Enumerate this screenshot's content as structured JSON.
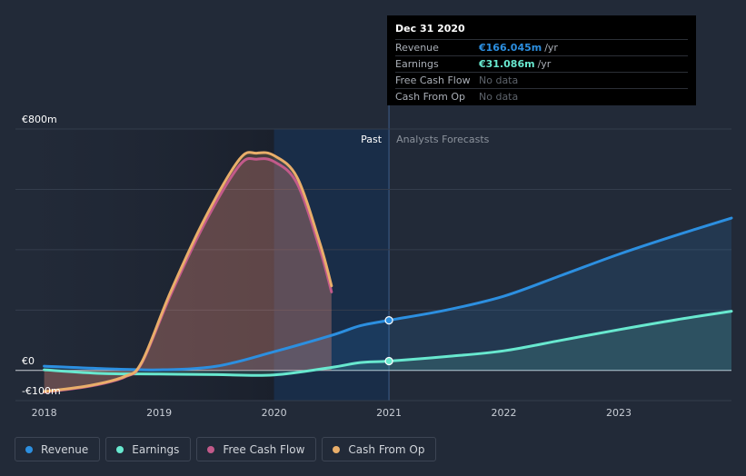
{
  "chart_data": {
    "type": "line",
    "title": "",
    "xlabel": "",
    "ylabel": "",
    "currency": "€",
    "ylim": [
      -100,
      800
    ],
    "y_tick_labels": [
      {
        "value": 800,
        "label": "€800m"
      },
      {
        "value": 0,
        "label": "€0"
      },
      {
        "value": -100,
        "label": "-€100m"
      }
    ],
    "x_tick_labels": [
      {
        "value": 2018,
        "label": "2018"
      },
      {
        "value": 2019,
        "label": "2019"
      },
      {
        "value": 2020,
        "label": "2020"
      },
      {
        "value": 2021,
        "label": "2021"
      },
      {
        "value": 2022,
        "label": "2022"
      },
      {
        "value": 2023,
        "label": "2023"
      }
    ],
    "xlim": [
      2017.75,
      2023.98
    ],
    "divider_x": 2021.0,
    "past_label": "Past",
    "forecast_label": "Analysts Forecasts",
    "series": [
      {
        "name": "Revenue",
        "color": "#2c8fe0",
        "area": true,
        "points": [
          [
            2018.0,
            14
          ],
          [
            2018.5,
            6
          ],
          [
            2019.0,
            2
          ],
          [
            2019.5,
            14
          ],
          [
            2020.0,
            62
          ],
          [
            2020.5,
            116
          ],
          [
            2020.75,
            148
          ],
          [
            2021.0,
            166
          ],
          [
            2021.5,
            200
          ],
          [
            2022.0,
            246
          ],
          [
            2022.5,
            315
          ],
          [
            2023.0,
            385
          ],
          [
            2023.5,
            448
          ],
          [
            2023.98,
            505
          ]
        ]
      },
      {
        "name": "Earnings",
        "color": "#68e8cf",
        "area": true,
        "points": [
          [
            2018.0,
            2
          ],
          [
            2018.5,
            -10
          ],
          [
            2019.0,
            -12
          ],
          [
            2019.5,
            -14
          ],
          [
            2020.0,
            -15
          ],
          [
            2020.5,
            10
          ],
          [
            2020.75,
            26
          ],
          [
            2021.0,
            31
          ],
          [
            2021.5,
            46
          ],
          [
            2022.0,
            65
          ],
          [
            2022.5,
            100
          ],
          [
            2023.0,
            135
          ],
          [
            2023.5,
            168
          ],
          [
            2023.98,
            196
          ]
        ]
      },
      {
        "name": "Free Cash Flow",
        "color": "#c25a8a",
        "area": true,
        "points": [
          [
            2018.0,
            -72
          ],
          [
            2018.4,
            -52
          ],
          [
            2018.7,
            -22
          ],
          [
            2018.85,
            25
          ],
          [
            2019.1,
            250
          ],
          [
            2019.4,
            490
          ],
          [
            2019.7,
            680
          ],
          [
            2019.85,
            700
          ],
          [
            2020.0,
            692
          ],
          [
            2020.2,
            620
          ],
          [
            2020.4,
            400
          ],
          [
            2020.5,
            260
          ]
        ]
      },
      {
        "name": "Cash From Op",
        "color": "#e9ae6a",
        "area": true,
        "points": [
          [
            2018.0,
            -70
          ],
          [
            2018.4,
            -50
          ],
          [
            2018.7,
            -20
          ],
          [
            2018.85,
            28
          ],
          [
            2019.1,
            260
          ],
          [
            2019.4,
            505
          ],
          [
            2019.7,
            700
          ],
          [
            2019.85,
            720
          ],
          [
            2020.0,
            712
          ],
          [
            2020.2,
            640
          ],
          [
            2020.4,
            420
          ],
          [
            2020.5,
            280
          ]
        ]
      }
    ],
    "markers": [
      {
        "series": "Revenue",
        "x": 2021.0,
        "y": 166
      },
      {
        "series": "Earnings",
        "x": 2021.0,
        "y": 31
      }
    ]
  },
  "tooltip": {
    "date": "Dec 31 2020",
    "rows": [
      {
        "label": "Revenue",
        "value": "€166.045m",
        "unit": "/yr",
        "color": "#2c8fe0"
      },
      {
        "label": "Earnings",
        "value": "€31.086m",
        "unit": "/yr",
        "color": "#68e8cf"
      },
      {
        "label": "Free Cash Flow",
        "value": "No data",
        "unit": "",
        "color": ""
      },
      {
        "label": "Cash From Op",
        "value": "No data",
        "unit": "",
        "color": ""
      }
    ]
  },
  "legend": [
    {
      "label": "Revenue",
      "color": "#2c8fe0"
    },
    {
      "label": "Earnings",
      "color": "#68e8cf"
    },
    {
      "label": "Free Cash Flow",
      "color": "#c25a8a"
    },
    {
      "label": "Cash From Op",
      "color": "#e9ae6a"
    }
  ]
}
